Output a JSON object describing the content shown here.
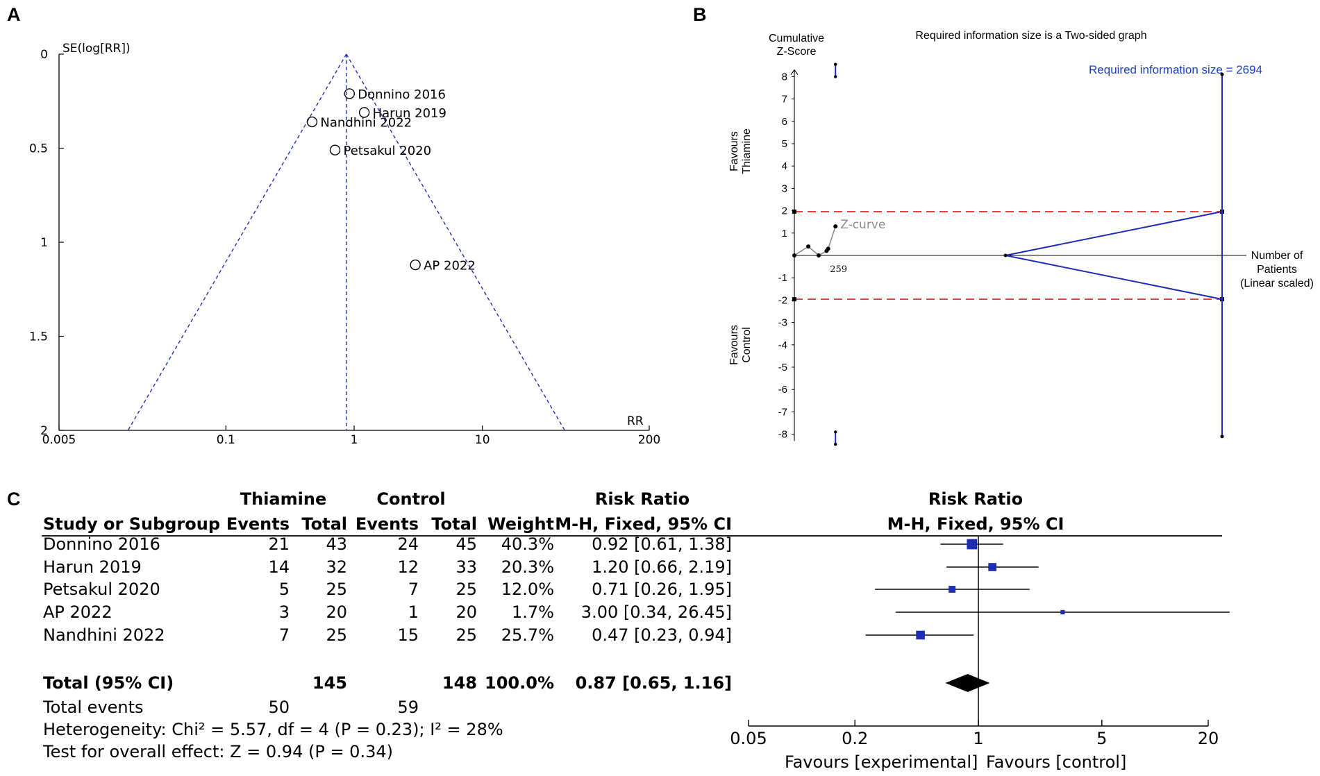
{
  "panels": {
    "a": "A",
    "b": "B",
    "c": "C"
  },
  "chart_data": [
    {
      "type": "scatter",
      "name": "funnel-plot",
      "ylabel": "SE(log[RR])",
      "xlabel": "RR",
      "x_scale": "log",
      "xlim": [
        0.005,
        200
      ],
      "ylim": [
        0,
        2
      ],
      "x_ticks": [
        0.005,
        0.1,
        1,
        10,
        200
      ],
      "x_tick_labels": [
        "0.005",
        "0.1",
        "1",
        "10",
        "200"
      ],
      "y_ticks": [
        0,
        0.5,
        1,
        1.5,
        2
      ],
      "y_tick_labels": [
        "0",
        "0.5",
        "1",
        "1.5",
        "2"
      ],
      "pooled_rr": 0.87,
      "points": [
        {
          "label": "Donnino 2016",
          "rr": 0.92,
          "se": 0.21
        },
        {
          "label": "Harun 2019",
          "rr": 1.2,
          "se": 0.31
        },
        {
          "label": "Nandhini 2022",
          "rr": 0.47,
          "se": 0.36
        },
        {
          "label": "Petsakul 2020",
          "rr": 0.71,
          "se": 0.51
        },
        {
          "label": "AP 2022",
          "rr": 3.0,
          "se": 1.12
        }
      ]
    },
    {
      "type": "line",
      "name": "trial-sequential-analysis",
      "title": "Required information size is a Two-sided graph",
      "ylabel": "Cumulative Z-Score",
      "xlabel": "Number of Patients (Linear scaled)",
      "ylabel_top_lines": [
        "Cumulative",
        "Z-Score"
      ],
      "xlabel_lines": [
        "Number of",
        "Patients",
        "(Linear scaled)"
      ],
      "favours_top": [
        "Favours",
        "Thiamine"
      ],
      "favours_bottom": [
        "Favours",
        "Control"
      ],
      "ylim": [
        -8,
        8
      ],
      "y_ticks": [
        8,
        7,
        6,
        5,
        4,
        3,
        2,
        1,
        -1,
        -2,
        -3,
        -4,
        -5,
        -6,
        -7,
        -8
      ],
      "xlim": [
        0,
        2694
      ],
      "required_information_size_label": "Required information size = 2694",
      "required_information_size": 2694,
      "conventional_boundary": [
        1.96,
        -1.96
      ],
      "monitoring_boundary_x": 259,
      "futility_wedge_start": 1330,
      "z_curve_label": "Z-curve",
      "z_curve": [
        {
          "n": 0,
          "z": 0
        },
        {
          "n": 88,
          "z": 0.4
        },
        {
          "n": 153,
          "z": 0.0
        },
        {
          "n": 203,
          "z": 0.2
        },
        {
          "n": 213,
          "z": 0.3
        },
        {
          "n": 259,
          "z": 1.3
        }
      ],
      "x_tick_labels": [
        "259"
      ]
    },
    {
      "type": "table",
      "name": "forest-plot",
      "headers": {
        "group_thiamine": "Thiamine",
        "group_control": "Control",
        "group_rr": "Risk Ratio",
        "study": "Study or Subgroup",
        "events_t": "Events",
        "total_t": "Total",
        "events_c": "Events",
        "total_c": "Total",
        "weight": "Weight",
        "method": "M-H, Fixed, 95% CI",
        "plot_title": "Risk Ratio",
        "plot_method": "M-H, Fixed, 95% CI"
      },
      "rows": [
        {
          "study": "Donnino 2016",
          "events_t": "21",
          "total_t": "43",
          "events_c": "24",
          "total_c": "45",
          "weight": "40.3%",
          "ci_text": "0.92 [0.61, 1.38]",
          "rr": 0.92,
          "lo": 0.61,
          "hi": 1.38,
          "w": 40.3
        },
        {
          "study": "Harun 2019",
          "events_t": "14",
          "total_t": "32",
          "events_c": "12",
          "total_c": "33",
          "weight": "20.3%",
          "ci_text": "1.20 [0.66, 2.19]",
          "rr": 1.2,
          "lo": 0.66,
          "hi": 2.19,
          "w": 20.3
        },
        {
          "study": "Petsakul 2020",
          "events_t": "5",
          "total_t": "25",
          "events_c": "7",
          "total_c": "25",
          "weight": "12.0%",
          "ci_text": "0.71 [0.26, 1.95]",
          "rr": 0.71,
          "lo": 0.26,
          "hi": 1.95,
          "w": 12.0
        },
        {
          "study": "AP 2022",
          "events_t": "3",
          "total_t": "20",
          "events_c": "1",
          "total_c": "20",
          "weight": "1.7%",
          "ci_text": "3.00 [0.34, 26.45]",
          "rr": 3.0,
          "lo": 0.34,
          "hi": 26.45,
          "w": 1.7
        },
        {
          "study": "Nandhini 2022",
          "events_t": "7",
          "total_t": "25",
          "events_c": "15",
          "total_c": "25",
          "weight": "25.7%",
          "ci_text": "0.47 [0.23, 0.94]",
          "rr": 0.47,
          "lo": 0.23,
          "hi": 0.94,
          "w": 25.7
        }
      ],
      "total": {
        "label": "Total (95% CI)",
        "total_t": "145",
        "total_c": "148",
        "weight": "100.0%",
        "ci_text": "0.87 [0.65, 1.16]",
        "rr": 0.87,
        "lo": 0.65,
        "hi": 1.16
      },
      "total_events": {
        "label": "Total events",
        "events_t": "50",
        "events_c": "59"
      },
      "heterogeneity": "Heterogeneity: Chi² = 5.57, df = 4 (P = 0.23); I² = 28%",
      "overall_effect": "Test for overall effect: Z = 0.94 (P = 0.34)",
      "axis_ticks": [
        0.05,
        0.2,
        1,
        5,
        20
      ],
      "axis_tick_labels": [
        "0.05",
        "0.2",
        "1",
        "5",
        "20"
      ],
      "favours_left": "Favours [experimental]",
      "favours_right": "Favours [control]",
      "x_scale": "log",
      "xlim": [
        0.05,
        20
      ]
    }
  ]
}
